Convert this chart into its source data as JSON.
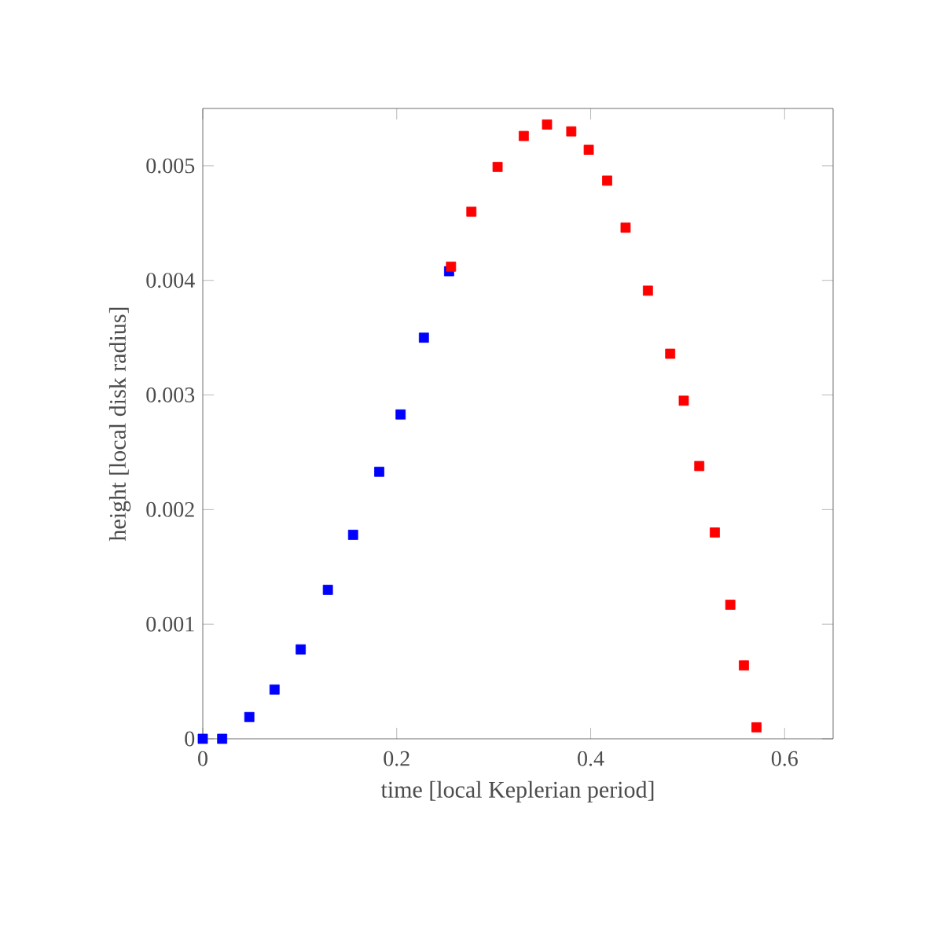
{
  "chart_data": {
    "type": "scatter",
    "xlabel": "time [local Keplerian period]",
    "ylabel": "height [local disk radius]",
    "xlim": [
      0,
      0.65
    ],
    "ylim": [
      0,
      0.0055
    ],
    "xticks": [
      0,
      0.2,
      0.4,
      0.6
    ],
    "yticks": [
      0,
      0.001,
      0.002,
      0.003,
      0.004,
      0.005
    ],
    "marker": "square",
    "series": [
      {
        "color": "#0000ff",
        "x": [
          0,
          0.02,
          0.048,
          0.074,
          0.101,
          0.129,
          0.155,
          0.182,
          0.204,
          0.228,
          0.254
        ],
        "values": [
          0,
          0,
          0.00019,
          0.00043,
          0.00078,
          0.0013,
          0.00178,
          0.00233,
          0.00283,
          0.0035,
          0.00408
        ]
      },
      {
        "color": "#ff0000",
        "x": [
          0.256,
          0.277,
          0.304,
          0.331,
          0.355,
          0.38,
          0.398,
          0.417,
          0.436,
          0.459,
          0.482,
          0.496,
          0.512,
          0.528,
          0.544,
          0.558,
          0.571
        ],
        "values": [
          0.00412,
          0.0046,
          0.00499,
          0.00526,
          0.00536,
          0.0053,
          0.00514,
          0.00487,
          0.00446,
          0.00391,
          0.00336,
          0.00295,
          0.00238,
          0.0018,
          0.00117,
          0.00064,
          0.0001
        ]
      }
    ]
  }
}
